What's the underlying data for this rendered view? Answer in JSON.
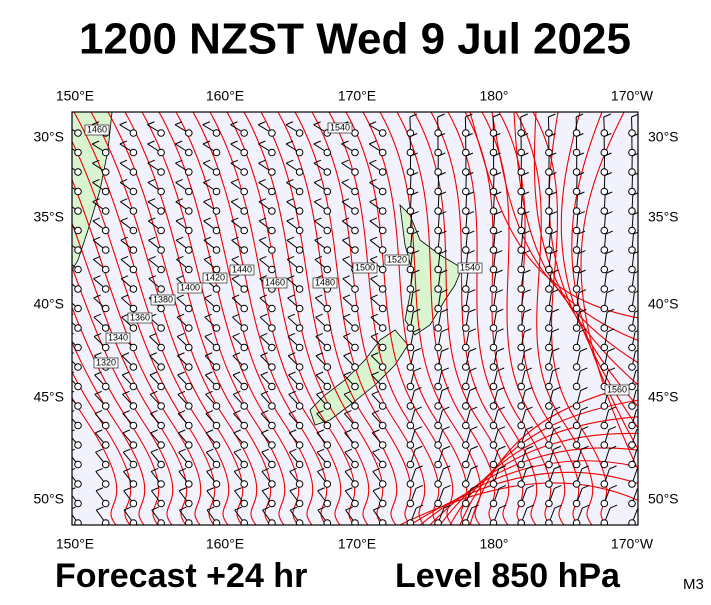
{
  "header": {
    "title": "1200 NZST Wed 9 Jul 2025"
  },
  "axes": {
    "top": [
      "150°E",
      "160°E",
      "170°E",
      "180°",
      "170°W"
    ],
    "bottom": [
      "150°E",
      "160°E",
      "170°E",
      "180°",
      "170°W"
    ],
    "left": [
      "30°S",
      "35°S",
      "40°S",
      "45°S",
      "50°S"
    ],
    "right": [
      "30°S",
      "35°S",
      "40°S",
      "45°S",
      "50°S"
    ]
  },
  "contour_labels": [
    1460,
    1540,
    1400,
    1420,
    1440,
    1460,
    1480,
    1500,
    1520,
    1540,
    1380,
    1360,
    1340,
    1320,
    1560
  ],
  "footer": {
    "forecast": "Forecast +24 hr",
    "level": "Level 850 hPa",
    "code": "M3"
  }
}
